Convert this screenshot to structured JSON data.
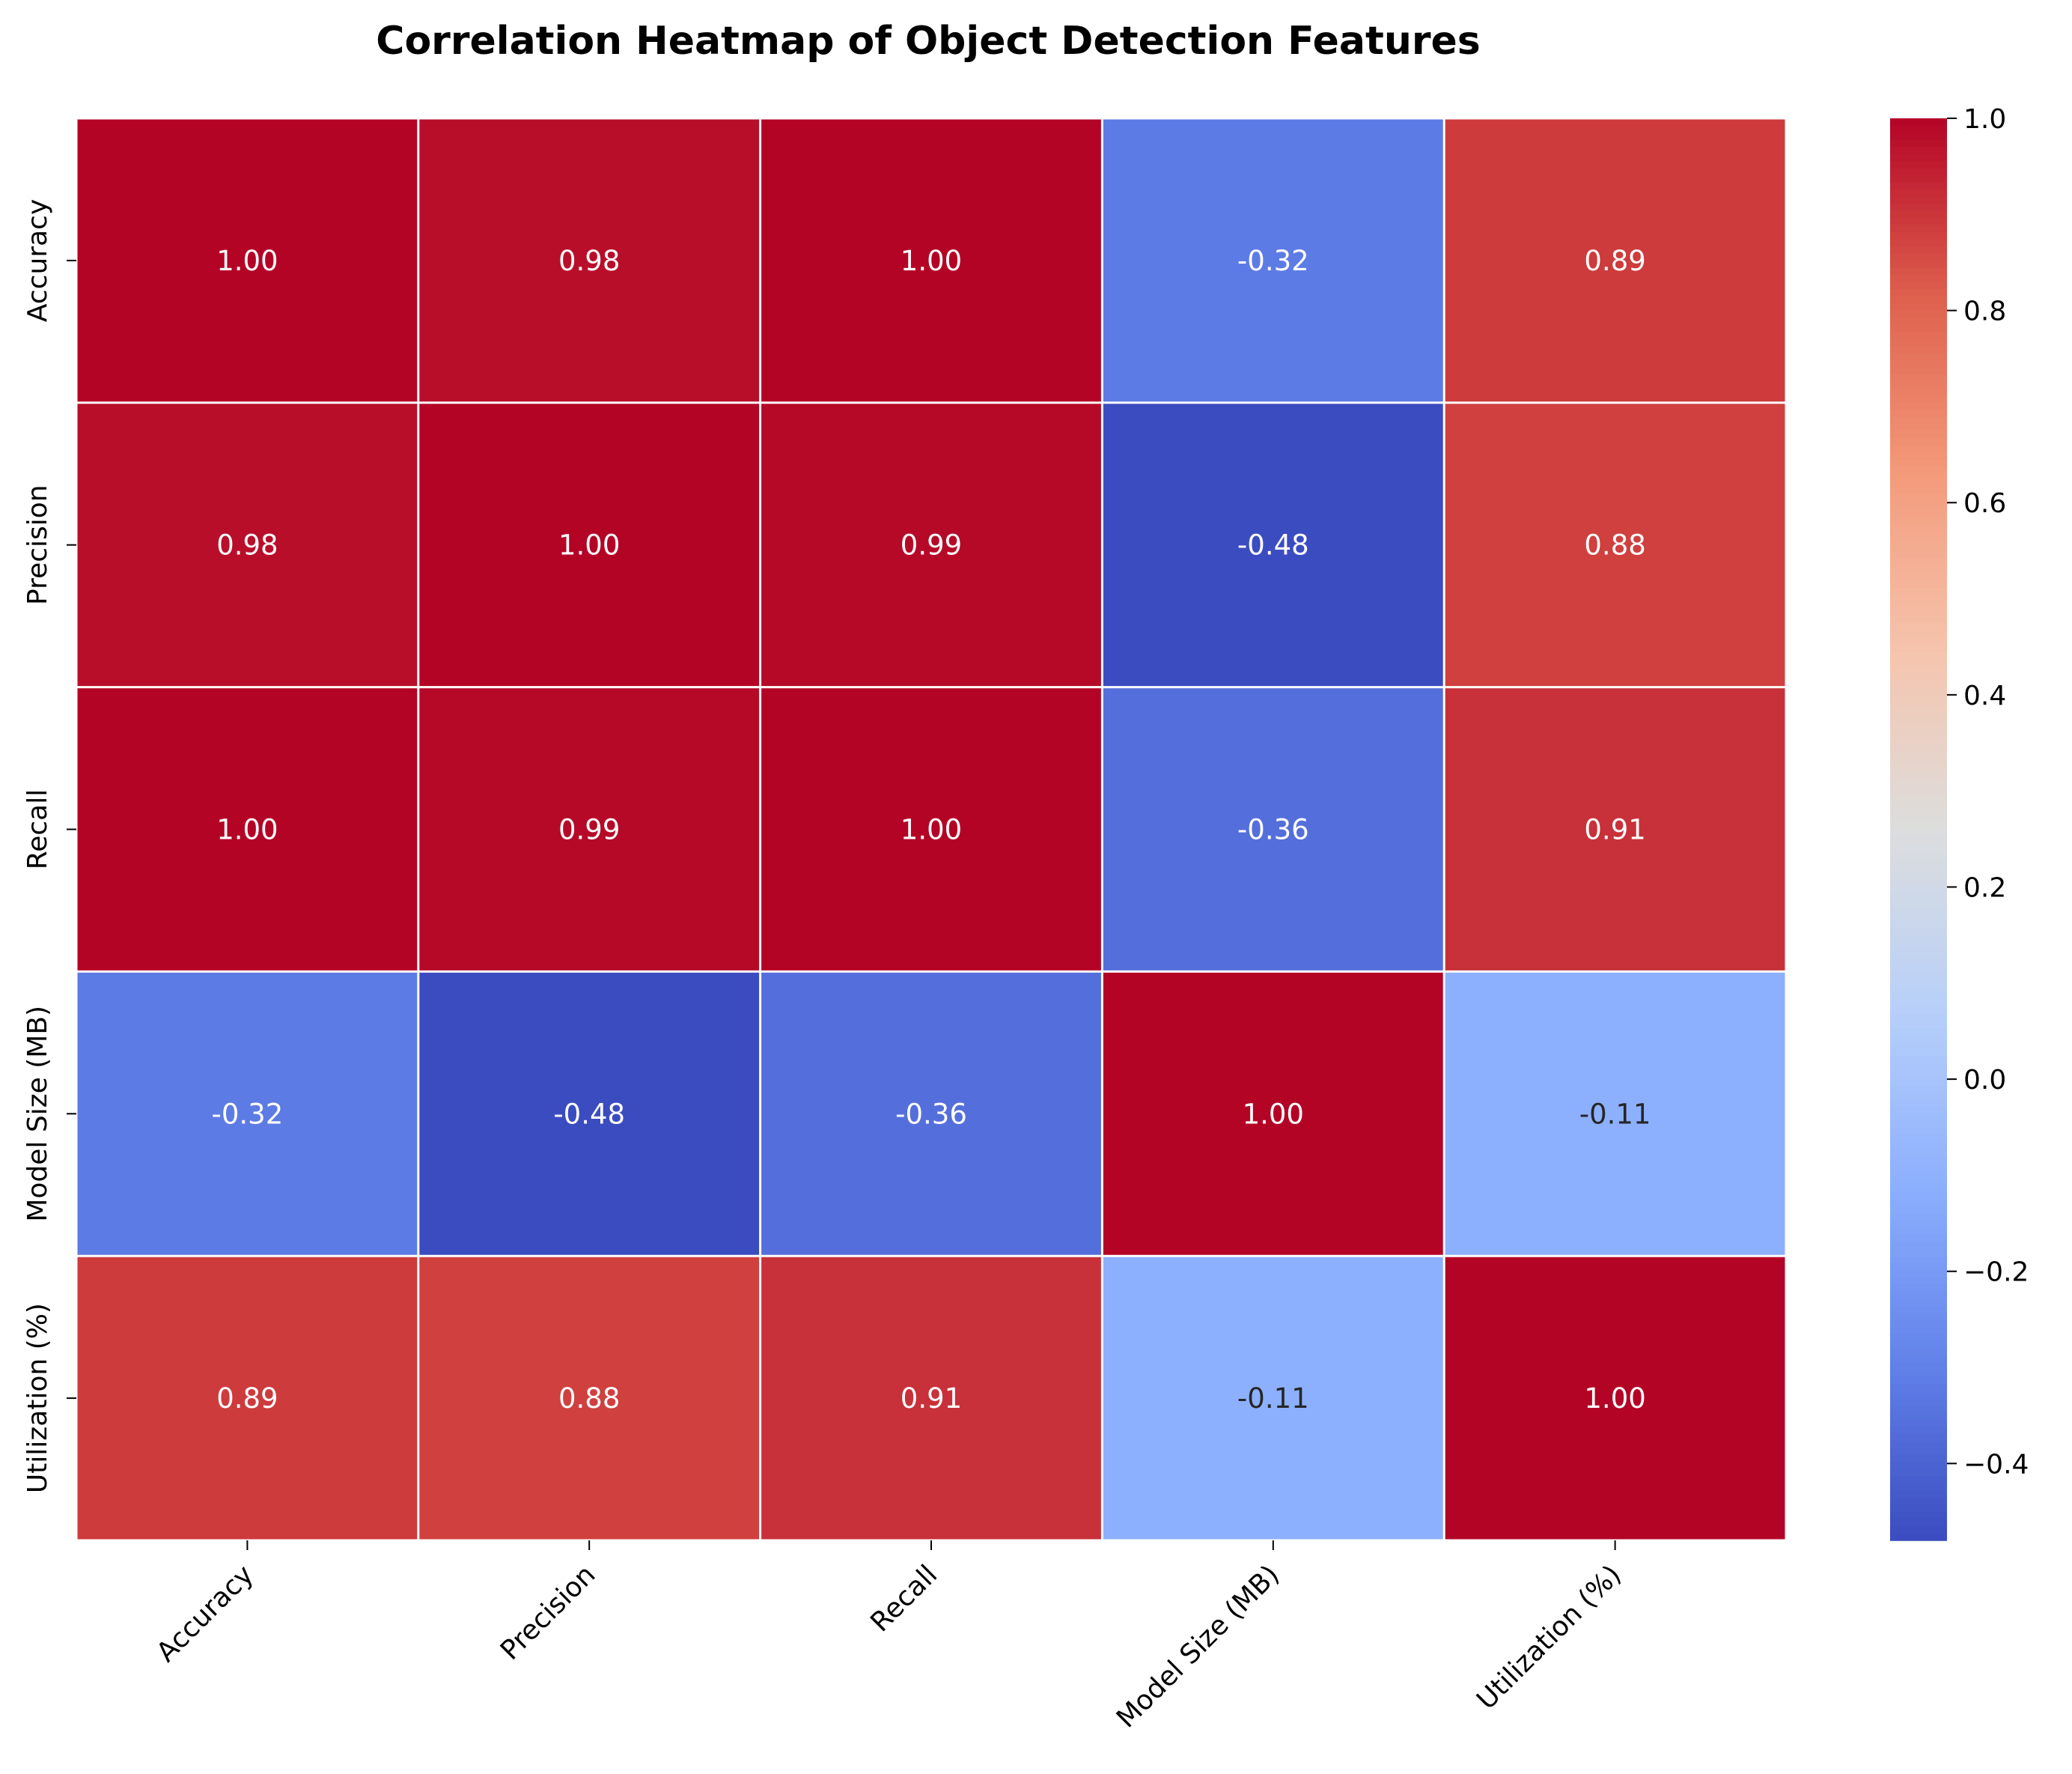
{
  "chart_data": {
    "type": "heatmap",
    "title": "Correlation Heatmap of Object Detection Features",
    "variables": [
      "Accuracy",
      "Precision",
      "Recall",
      "Model Size (MB)",
      "Utilization (%)"
    ],
    "matrix": [
      [
        1.0,
        0.98,
        1.0,
        -0.32,
        0.89
      ],
      [
        0.98,
        1.0,
        0.99,
        -0.48,
        0.88
      ],
      [
        1.0,
        0.99,
        1.0,
        -0.36,
        0.91
      ],
      [
        -0.32,
        -0.48,
        -0.36,
        1.0,
        -0.11
      ],
      [
        0.89,
        0.88,
        0.91,
        -0.11,
        1.0
      ]
    ],
    "value_format": "0.00",
    "colormap": "coolwarm",
    "color_range": [
      -0.48,
      1.0
    ],
    "colorbar_ticks": [
      1.0,
      0.8,
      0.6,
      0.4,
      0.2,
      0.0,
      -0.2,
      -0.4
    ],
    "colorbar_tick_labels": [
      "1.0",
      "0.8",
      "0.6",
      "0.4",
      "0.2",
      "0.0",
      "−0.2",
      "−0.4"
    ],
    "cell_border_color": "#ffffff",
    "annotation_colors": {
      "light": "#ffffff",
      "dark": "#262626"
    }
  }
}
